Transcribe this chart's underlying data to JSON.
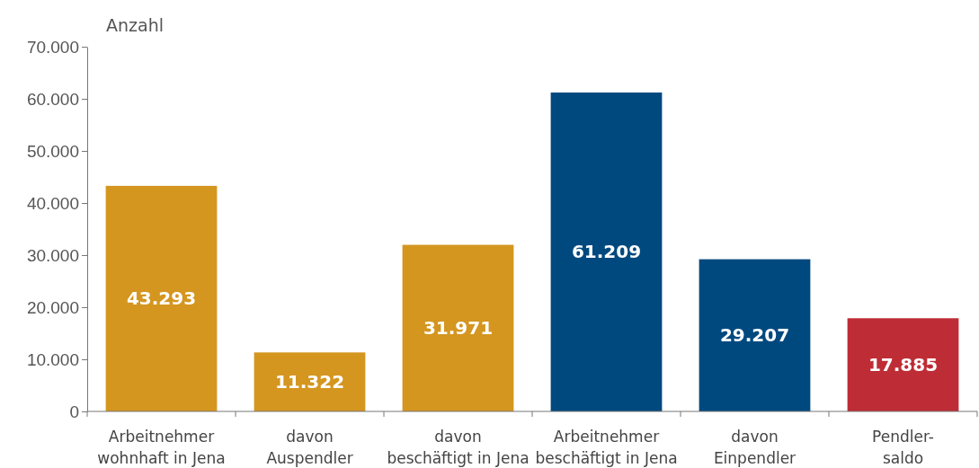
{
  "chart_data": {
    "type": "bar",
    "ylabel": "Anzahl",
    "categories": [
      "Arbeitnehmer\nwohnhaft in Jena",
      "davon\nAuspendler",
      "davon\nbeschäftigt in Jena",
      "Arbeitnehmer\nbeschäftigt in Jena",
      "davon\nEinpendler",
      "Pendler-\nsaldo"
    ],
    "values": [
      43293,
      11322,
      31971,
      61209,
      29207,
      17885
    ],
    "colors": [
      "#d4961f",
      "#d4961f",
      "#d4961f",
      "#00497f",
      "#00497f",
      "#be2d35"
    ],
    "value_labels": [
      "43.293",
      "11.322",
      "31.971",
      "61.209",
      "29.207",
      "17.885"
    ],
    "ylim": [
      0,
      70000
    ],
    "yticks": [
      {
        "value": 0,
        "label": "0"
      },
      {
        "value": 10000,
        "label": "10.000"
      },
      {
        "value": 20000,
        "label": "20.000"
      },
      {
        "value": 30000,
        "label": "30.000"
      },
      {
        "value": 40000,
        "label": "40.000"
      },
      {
        "value": 50000,
        "label": "50.000"
      },
      {
        "value": 60000,
        "label": "60.000"
      },
      {
        "value": 70000,
        "label": "70.000"
      }
    ],
    "grid": false
  }
}
